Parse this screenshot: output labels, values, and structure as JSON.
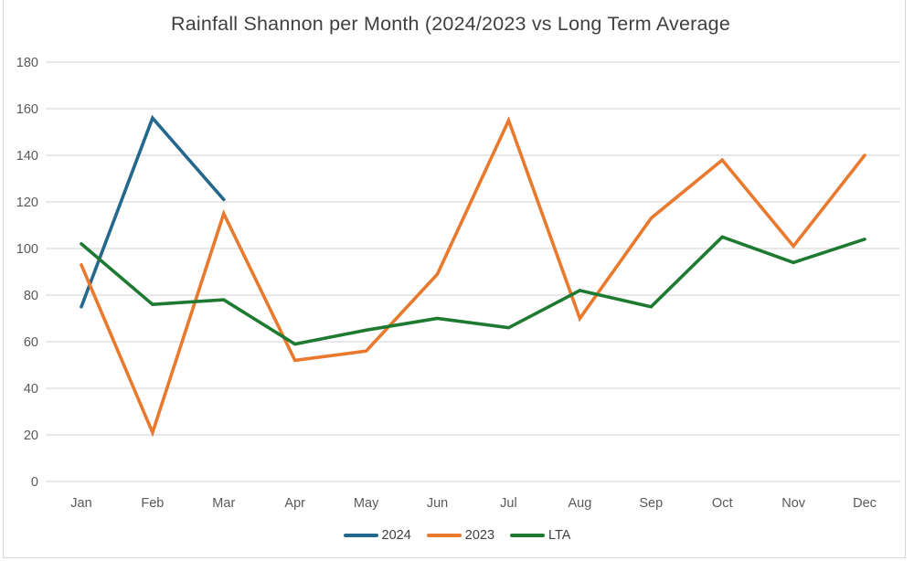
{
  "chart_data": {
    "type": "line",
    "title": "Rainfall Shannon per Month (2024/2023 vs Long Term Average",
    "categories": [
      "Jan",
      "Feb",
      "Mar",
      "Apr",
      "May",
      "Jun",
      "Jul",
      "Aug",
      "Sep",
      "Oct",
      "Nov",
      "Dec"
    ],
    "series": [
      {
        "name": "2024",
        "color": "#25688D",
        "values": [
          75,
          156,
          121,
          null,
          null,
          null,
          null,
          null,
          null,
          null,
          null,
          null
        ]
      },
      {
        "name": "2023",
        "color": "#E8792D",
        "values": [
          93,
          21,
          115,
          52,
          56,
          89,
          155,
          70,
          113,
          138,
          101,
          140
        ]
      },
      {
        "name": "LTA",
        "color": "#1E7A30",
        "values": [
          102,
          76,
          78,
          59,
          65,
          70,
          66,
          82,
          75,
          105,
          94,
          104
        ]
      }
    ],
    "ylim": [
      0,
      180
    ],
    "yticks": [
      0,
      20,
      40,
      60,
      80,
      100,
      120,
      140,
      160,
      180
    ],
    "xlabel": "",
    "ylabel": "",
    "grid": true,
    "legend_position": "bottom"
  },
  "style": {
    "grid_color": "#dadada",
    "axis_label_color": "#595959",
    "title_color": "#404040",
    "frame_color": "#d6d6d6",
    "line_width": 3.6
  }
}
